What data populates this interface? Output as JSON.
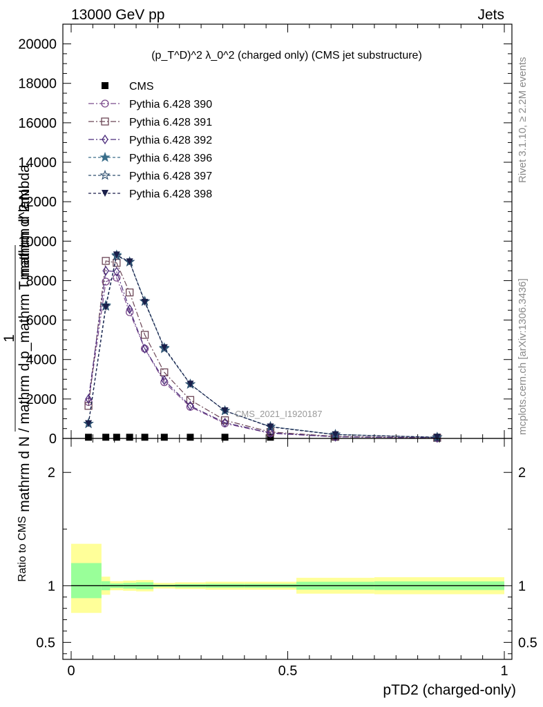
{
  "header": {
    "left": "13000 GeV pp",
    "right": "Jets"
  },
  "side_texts": {
    "rivet": "Rivet 3.1.10, ≥ 2.2M events",
    "mcplots": "mcplots.cern.ch [arXiv:1306.3436]"
  },
  "chart_data": [
    {
      "type": "line",
      "title": "(p_T^D)^2 λ_0^2 (charged only) (CMS jet substructure)",
      "ylabel_num": "1",
      "ylabel_den": "mathrm d N / mathrm d p_mathrm T mathrm d lambda",
      "ylabel_num2": "mathrm d^2 N",
      "watermark": "CMS_2021_I1920187",
      "xlim": [
        0,
        1
      ],
      "ylim": [
        0,
        21000
      ],
      "yticks": [
        0,
        2000,
        4000,
        6000,
        8000,
        10000,
        12000,
        14000,
        16000,
        18000,
        20000
      ],
      "legend_position": "top-left",
      "x": [
        0.04,
        0.08,
        0.105,
        0.135,
        0.17,
        0.215,
        0.275,
        0.355,
        0.46,
        0.61,
        0.845
      ],
      "series": [
        {
          "name": "CMS",
          "color": "#000000",
          "marker": "square-filled",
          "dash": "none",
          "values": [
            60,
            60,
            60,
            60,
            60,
            60,
            60,
            60,
            60,
            60,
            60
          ]
        },
        {
          "name": "Pythia 6.428 390",
          "color": "#7b4a8c",
          "marker": "circle-open",
          "dash": "8,3,2,3",
          "values": [
            1850,
            7950,
            8150,
            6400,
            4550,
            2850,
            1600,
            760,
            260,
            80,
            25
          ]
        },
        {
          "name": "Pythia 6.428 391",
          "color": "#6b4555",
          "marker": "square-open",
          "dash": "8,3,2,3",
          "values": [
            1650,
            9000,
            8900,
            7400,
            5250,
            3350,
            1950,
            920,
            330,
            100,
            30
          ]
        },
        {
          "name": "Pythia 6.428 392",
          "color": "#4a2a7a",
          "marker": "diamond-open",
          "dash": "8,3,2,3",
          "values": [
            2000,
            8500,
            8450,
            6550,
            4550,
            2950,
            1650,
            800,
            280,
            85,
            25
          ]
        },
        {
          "name": "Pythia 6.428 396",
          "color": "#3a6e8a",
          "marker": "star-filled",
          "dash": "4,3",
          "values": [
            750,
            6750,
            9300,
            8950,
            6950,
            4600,
            2750,
            1400,
            600,
            200,
            60
          ]
        },
        {
          "name": "Pythia 6.428 397",
          "color": "#2e4e6e",
          "marker": "star-open",
          "dash": "4,3",
          "values": [
            750,
            6700,
            9250,
            8950,
            6950,
            4550,
            2750,
            1400,
            600,
            200,
            60
          ]
        },
        {
          "name": "Pythia 6.428 398",
          "color": "#1a1f4a",
          "marker": "triangle-down-filled",
          "dash": "4,3",
          "values": [
            750,
            6650,
            9300,
            8950,
            6900,
            4600,
            2750,
            1400,
            580,
            190,
            60
          ]
        }
      ]
    },
    {
      "type": "area",
      "ylabel": "Ratio to CMS",
      "xlabel": "pTD2 (charged-only)",
      "xlim": [
        0,
        1
      ],
      "ylim": [
        0.35,
        2.3
      ],
      "yticks": [
        0.5,
        1,
        2
      ],
      "xticks": [
        0,
        0.5,
        1
      ],
      "x_tick_labels": [
        "0",
        "0.5",
        "1"
      ],
      "y_tick_labels": [
        "0.5",
        "1",
        "2"
      ],
      "reference_line": 1,
      "bins": [
        0,
        0.07,
        0.09,
        0.12,
        0.15,
        0.19,
        0.24,
        0.31,
        0.4,
        0.52,
        0.7,
        1.0
      ],
      "band_outer": [
        [
          0.76,
          1.37
        ],
        [
          0.92,
          1.08
        ],
        [
          0.96,
          1.04
        ],
        [
          0.955,
          1.045
        ],
        [
          0.95,
          1.05
        ],
        [
          0.975,
          1.025
        ],
        [
          0.97,
          1.03
        ],
        [
          0.965,
          1.035
        ],
        [
          0.965,
          1.035
        ],
        [
          0.93,
          1.07
        ],
        [
          0.925,
          1.075
        ]
      ],
      "band_inner": [
        [
          0.89,
          1.2
        ],
        [
          0.96,
          1.04
        ],
        [
          0.98,
          1.02
        ],
        [
          0.975,
          1.025
        ],
        [
          0.97,
          1.03
        ],
        [
          0.99,
          1.01
        ],
        [
          0.985,
          1.015
        ],
        [
          0.983,
          1.017
        ],
        [
          0.983,
          1.017
        ],
        [
          0.965,
          1.035
        ],
        [
          0.962,
          1.038
        ]
      ],
      "band_colors": {
        "outer": "#ffff99",
        "inner": "#99ff99"
      }
    }
  ]
}
